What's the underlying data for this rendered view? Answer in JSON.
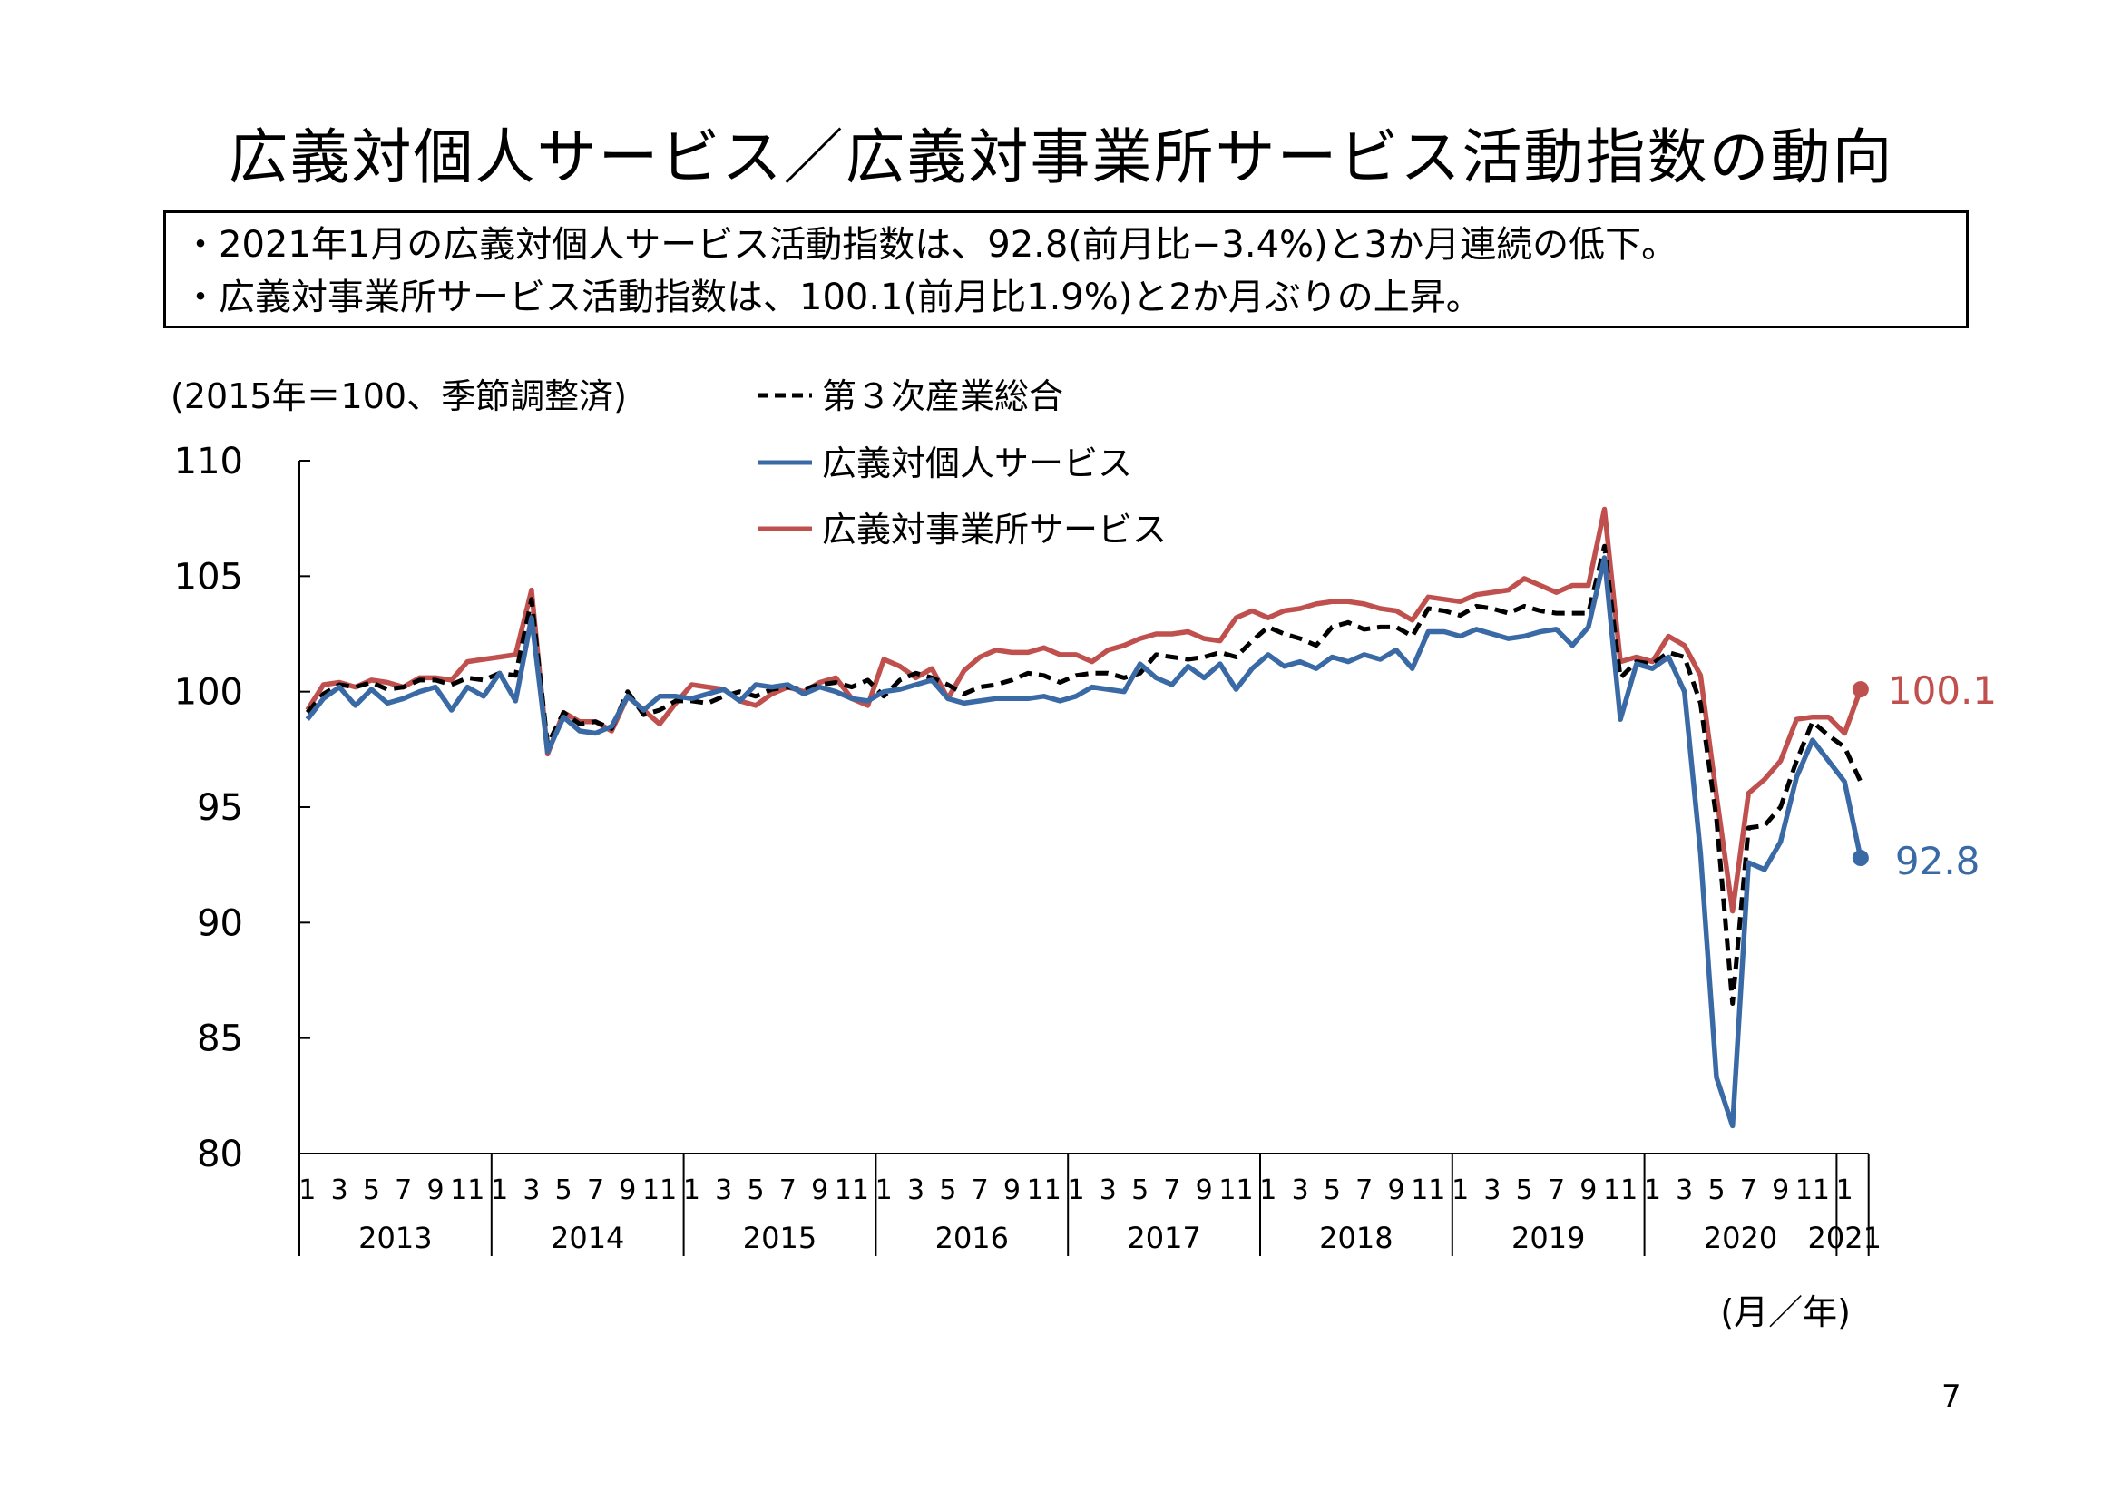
{
  "page": {
    "title": "広義対個人サービス／広義対事業所サービス活動指数の動向",
    "summary": [
      "・2021年1月の広義対個人サービス活動指数は、92.8(前月比−3.4%)と3か月連続の低下。",
      "・広義対事業所サービス活動指数は、100.1(前月比1.9%)と2か月ぶりの上昇。"
    ],
    "page_number": "7"
  },
  "chart_data": {
    "type": "line",
    "unit_note": "(2015年＝100、季節調整済)",
    "xlabel": "(月／年)",
    "ylim": [
      80,
      110
    ],
    "yticks": [
      80,
      85,
      90,
      95,
      100,
      105,
      110
    ],
    "month_tick_labels": [
      "1",
      "3",
      "5",
      "7",
      "9",
      "11"
    ],
    "years": [
      "2013",
      "2014",
      "2015",
      "2016",
      "2017",
      "2018",
      "2019",
      "2020",
      "2021"
    ],
    "x_start": "2013-01",
    "x_end": "2021-01",
    "legend_position": "top-left",
    "grid": false,
    "series": [
      {
        "name": "第３次産業総合",
        "color": "#000000",
        "style": "dashed",
        "values": [
          99.1,
          99.9,
          100.3,
          100.2,
          100.4,
          100.1,
          100.2,
          100.5,
          100.5,
          100.3,
          100.6,
          100.5,
          100.8,
          100.7,
          104.0,
          97.7,
          99.1,
          98.6,
          98.7,
          98.4,
          100.0,
          99.0,
          99.2,
          99.6,
          99.6,
          99.5,
          99.8,
          100.0,
          99.8,
          100.1,
          100.2,
          100.1,
          100.3,
          100.4,
          100.2,
          100.5,
          99.8,
          100.5,
          100.8,
          100.6,
          100.3,
          99.9,
          100.2,
          100.3,
          100.5,
          100.8,
          100.7,
          100.4,
          100.7,
          100.8,
          100.8,
          100.6,
          100.8,
          101.6,
          101.5,
          101.4,
          101.5,
          101.7,
          101.5,
          102.2,
          102.8,
          102.5,
          102.3,
          102.0,
          102.8,
          103.0,
          102.7,
          102.8,
          102.8,
          102.4,
          103.6,
          103.5,
          103.3,
          103.7,
          103.6,
          103.4,
          103.7,
          103.5,
          103.4,
          103.4,
          103.4,
          106.3,
          100.6,
          101.3,
          101.2,
          101.7,
          101.5,
          99.5,
          94.5,
          86.5,
          94.1,
          94.2,
          95.0,
          97.0,
          98.7,
          98.1,
          97.6,
          96.1
        ]
      },
      {
        "name": "広義対個人サービス",
        "color": "#3A6AA6",
        "style": "solid",
        "values": [
          98.8,
          99.7,
          100.2,
          99.4,
          100.1,
          99.5,
          99.7,
          100.0,
          100.2,
          99.2,
          100.2,
          99.8,
          100.8,
          99.6,
          103.2,
          97.4,
          98.9,
          98.3,
          98.2,
          98.5,
          99.8,
          99.2,
          99.8,
          99.8,
          99.7,
          99.9,
          100.1,
          99.6,
          100.3,
          100.2,
          100.3,
          99.9,
          100.2,
          100.0,
          99.7,
          99.6,
          100.0,
          100.1,
          100.3,
          100.5,
          99.7,
          99.5,
          99.6,
          99.7,
          99.7,
          99.7,
          99.8,
          99.6,
          99.8,
          100.2,
          100.1,
          100.0,
          101.2,
          100.6,
          100.3,
          101.1,
          100.6,
          101.2,
          100.1,
          101.0,
          101.6,
          101.1,
          101.3,
          101.0,
          101.5,
          101.3,
          101.6,
          101.4,
          101.8,
          101.0,
          102.6,
          102.6,
          102.4,
          102.7,
          102.5,
          102.3,
          102.4,
          102.6,
          102.7,
          102.0,
          102.8,
          105.8,
          98.8,
          101.2,
          101.0,
          101.5,
          100.0,
          93.0,
          83.3,
          81.2,
          92.6,
          92.3,
          93.5,
          96.3,
          97.9,
          97.0,
          96.1,
          92.8
        ]
      },
      {
        "name": "広義対事業所サービス",
        "color": "#C0504D",
        "style": "solid",
        "values": [
          99.2,
          100.3,
          100.4,
          100.2,
          100.5,
          100.4,
          100.2,
          100.6,
          100.6,
          100.5,
          101.3,
          101.4,
          101.5,
          101.6,
          104.4,
          97.3,
          99.1,
          98.7,
          98.7,
          98.3,
          99.8,
          99.2,
          98.6,
          99.5,
          100.3,
          100.2,
          100.1,
          99.6,
          99.4,
          99.9,
          100.2,
          100.0,
          100.4,
          100.6,
          99.7,
          99.4,
          101.4,
          101.1,
          100.6,
          101.0,
          99.7,
          100.9,
          101.5,
          101.8,
          101.7,
          101.7,
          101.9,
          101.6,
          101.6,
          101.3,
          101.8,
          102.0,
          102.3,
          102.5,
          102.5,
          102.6,
          102.3,
          102.2,
          103.2,
          103.5,
          103.2,
          103.5,
          103.6,
          103.8,
          103.9,
          103.9,
          103.8,
          103.6,
          103.5,
          103.1,
          104.1,
          104.0,
          103.9,
          104.2,
          104.3,
          104.4,
          104.9,
          104.6,
          104.3,
          104.6,
          104.6,
          107.9,
          101.3,
          101.5,
          101.3,
          102.4,
          102.0,
          100.7,
          95.5,
          90.5,
          95.6,
          96.2,
          97.0,
          98.8,
          98.9,
          98.9,
          98.2,
          100.1
        ]
      }
    ],
    "end_labels": [
      {
        "series": "広義対事業所サービス",
        "text": "100.1"
      },
      {
        "series": "広義対個人サービス",
        "text": "92.8"
      }
    ]
  }
}
